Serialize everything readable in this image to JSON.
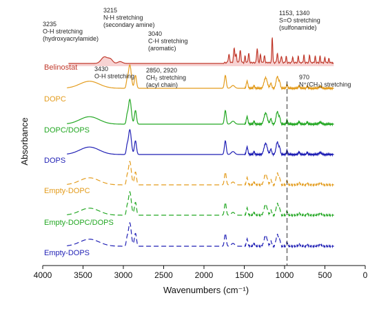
{
  "chart_data": {
    "type": "line",
    "xlabel": "Wavenumbers (cm⁻¹)",
    "ylabel": "Absorbance",
    "xlim": [
      4000,
      0
    ],
    "x_ticks": [
      "4000",
      "3500",
      "3000",
      "2500",
      "2000",
      "1500",
      "1000",
      "500",
      "0"
    ],
    "grid": false,
    "marker_line": {
      "x": 970,
      "style": "dashed"
    },
    "series": [
      {
        "name": "Belinostat",
        "color": "#c0392b",
        "style": "solid",
        "fill": "#f2b6b6"
      },
      {
        "name": "DOPC",
        "color": "#e39b1b",
        "style": "solid"
      },
      {
        "name": "DOPC/DOPS",
        "color": "#22a722",
        "style": "solid"
      },
      {
        "name": "DOPS",
        "color": "#1f1fb5",
        "style": "solid"
      },
      {
        "name": "Empty-DOPC",
        "color": "#e39b1b",
        "style": "dashed"
      },
      {
        "name": "Empty-DOPC/DOPS",
        "color": "#22a722",
        "style": "dashed"
      },
      {
        "name": "Empty-DOPS",
        "color": "#1f1fb5",
        "style": "dashed"
      }
    ],
    "annotations": [
      {
        "lines": [
          "3235",
          "O-H stretching",
          "(hydroxyacrylamide)"
        ]
      },
      {
        "lines": [
          "3215",
          "N-H stretching",
          "(secondary amine)"
        ]
      },
      {
        "lines": [
          "3040",
          "C-H stretching",
          "(aromatic)"
        ]
      },
      {
        "lines": [
          "1153, 1340",
          "S=O stretching",
          "(sulfonamide)"
        ]
      },
      {
        "lines": [
          "3430",
          "O-H stretching"
        ]
      },
      {
        "lines": [
          "2850, 2920",
          "CH₂ stretching",
          "(acyl chain)"
        ]
      },
      {
        "lines": [
          "970",
          "N⁺(CH₃) stretching"
        ]
      }
    ]
  }
}
